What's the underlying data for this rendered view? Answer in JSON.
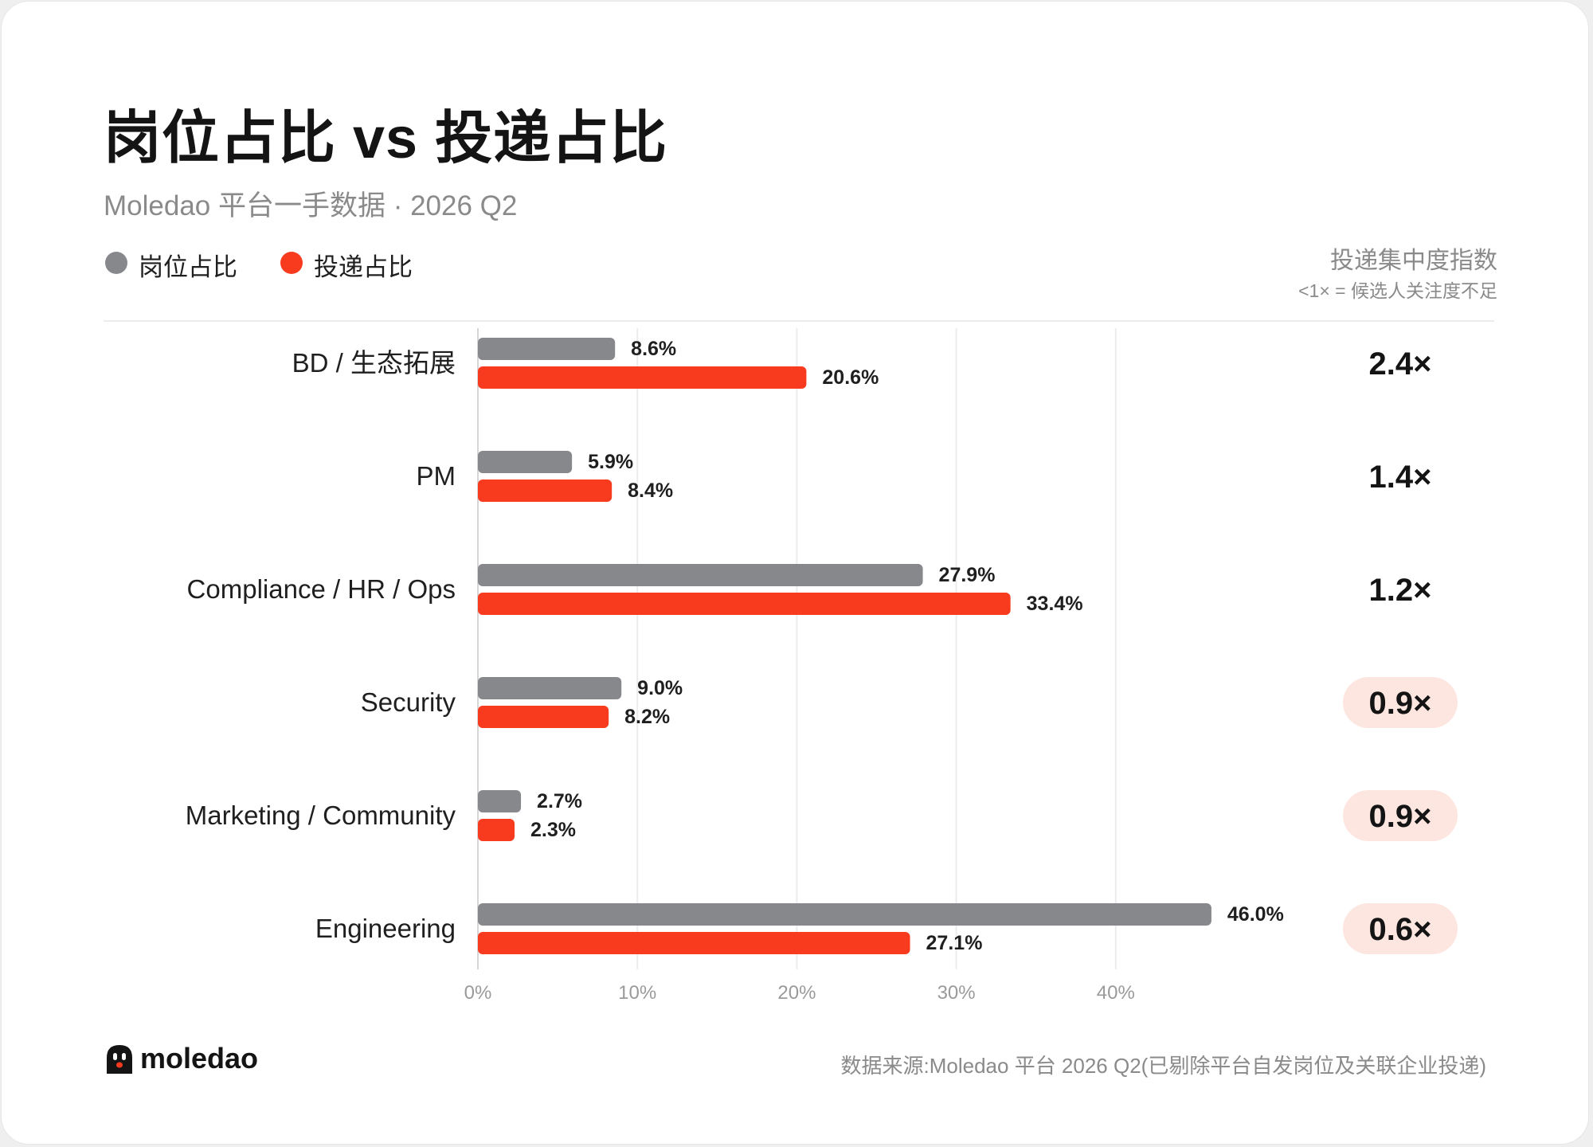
{
  "title": "岗位占比 vs 投递占比",
  "subtitle": "Moledao 平台一手数据 · 2026 Q2",
  "legend": [
    {
      "label": "岗位占比",
      "color": "#86888c"
    },
    {
      "label": "投递占比",
      "color": "#f83b1e"
    }
  ],
  "index_header": {
    "title": "投递集中度指数",
    "note": "<1× = 候选人关注度不足"
  },
  "footer": {
    "brand": "moledao",
    "source": "数据来源:Moledao 平台 2026 Q2(已剔除平台自发岗位及关联企业投递)"
  },
  "chart_data": {
    "type": "bar",
    "orientation": "horizontal",
    "categories": [
      "BD / 生态拓展",
      "PM",
      "Compliance / HR / Ops",
      "Security",
      "Marketing / Community",
      "Engineering"
    ],
    "series": [
      {
        "name": "岗位占比",
        "values": [
          8.6,
          5.9,
          27.9,
          9.0,
          2.7,
          46.0
        ],
        "labels": [
          "8.6%",
          "5.9%",
          "27.9%",
          "9.0%",
          "2.7%",
          "46.0%"
        ]
      },
      {
        "name": "投递占比",
        "values": [
          20.6,
          8.4,
          33.4,
          8.2,
          2.3,
          27.1
        ],
        "labels": [
          "20.6%",
          "8.4%",
          "33.4%",
          "8.2%",
          "2.3%",
          "27.1%"
        ]
      }
    ],
    "index_values": [
      "2.4×",
      "1.4×",
      "1.2×",
      "0.9×",
      "0.9×",
      "0.6×"
    ],
    "index_highlight": [
      false,
      false,
      false,
      true,
      true,
      true
    ],
    "highlight_color": "#fde6e0",
    "xticks": [
      "0%",
      "10%",
      "20%",
      "30%",
      "40%"
    ],
    "xtick_values": [
      0,
      10,
      20,
      30,
      40
    ],
    "xlim": [
      0,
      46.0
    ],
    "grid": true,
    "legend_position": "top-left"
  }
}
